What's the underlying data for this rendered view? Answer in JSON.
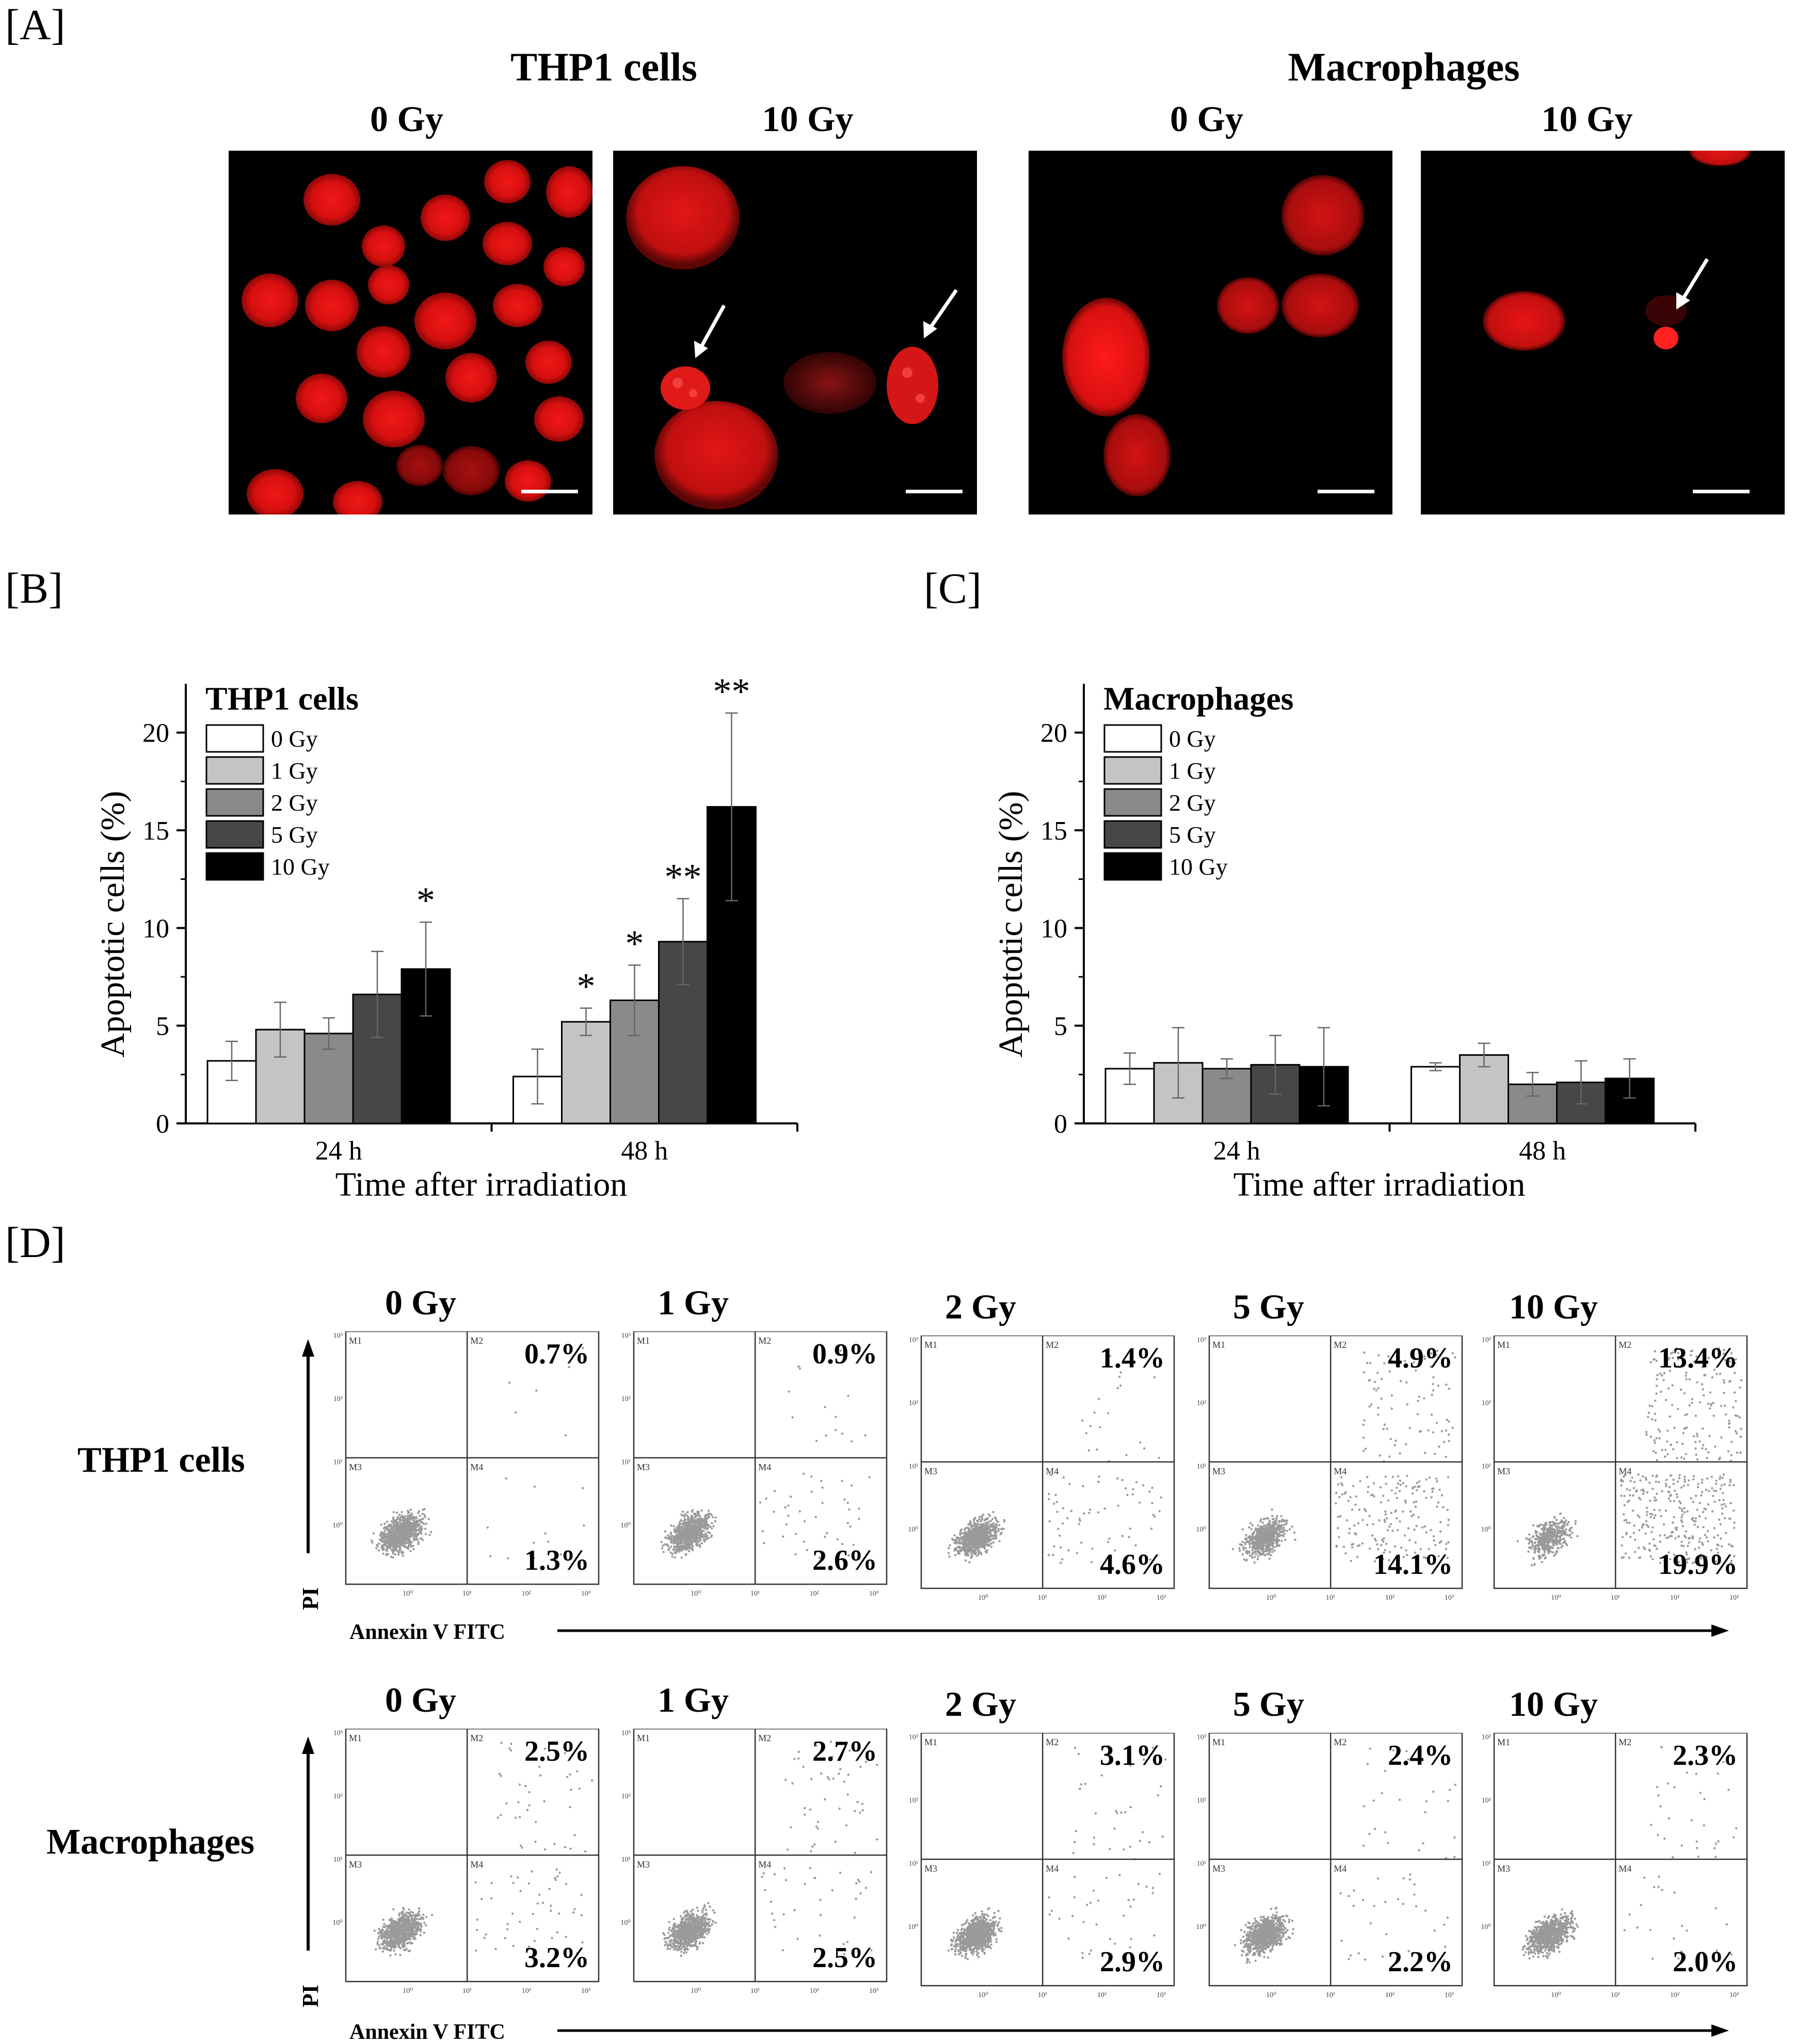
{
  "panel_a": {
    "label": "[A]",
    "groups": [
      {
        "title": "THP1 cells",
        "doses": [
          "0 Gy",
          "10 Gy"
        ]
      },
      {
        "title": "Macrophages",
        "doses": [
          "0 Gy",
          "10 Gy"
        ]
      }
    ]
  },
  "panel_b": {
    "label": "[B]"
  },
  "panel_c": {
    "label": "[C]"
  },
  "panel_d": {
    "label": "[D]"
  },
  "chart_data": [
    {
      "type": "bar",
      "panel": "[B]",
      "title": "THP1 cells",
      "xlabel": "Time after irradiation",
      "ylabel": "Apoptotic cells (%)",
      "categories": [
        "24 h",
        "48 h"
      ],
      "ylim": [
        0,
        22.5
      ],
      "yticks": [
        0,
        5,
        10,
        15,
        20
      ],
      "legend_position": "top-left",
      "series": [
        {
          "name": "0 Gy",
          "color": "#ffffff",
          "values": [
            3.2,
            2.4
          ],
          "errors": [
            1.0,
            1.4
          ]
        },
        {
          "name": "1 Gy",
          "color": "#c4c4c4",
          "values": [
            4.8,
            5.2
          ],
          "errors": [
            1.4,
            0.7
          ]
        },
        {
          "name": "2 Gy",
          "color": "#8a8a8a",
          "values": [
            4.6,
            6.3
          ],
          "errors": [
            0.8,
            1.8
          ]
        },
        {
          "name": "5 Gy",
          "color": "#474747",
          "values": [
            6.6,
            9.3
          ],
          "errors": [
            2.2,
            2.2
          ]
        },
        {
          "name": "10 Gy",
          "color": "#000000",
          "values": [
            7.9,
            16.2
          ],
          "errors": [
            2.4,
            4.8
          ]
        }
      ],
      "annotations": [
        {
          "category": "24 h",
          "series": "10 Gy",
          "text": "*"
        },
        {
          "category": "48 h",
          "series": "1 Gy",
          "text": "*"
        },
        {
          "category": "48 h",
          "series": "2 Gy",
          "text": "*"
        },
        {
          "category": "48 h",
          "series": "5 Gy",
          "text": "**"
        },
        {
          "category": "48 h",
          "series": "10 Gy",
          "text": "**"
        }
      ]
    },
    {
      "type": "bar",
      "panel": "[C]",
      "title": "Macrophages",
      "xlabel": "Time after irradiation",
      "ylabel": "Apoptotic cells (%)",
      "categories": [
        "24 h",
        "48 h"
      ],
      "ylim": [
        0,
        22.5
      ],
      "yticks": [
        0,
        5,
        10,
        15,
        20
      ],
      "legend_position": "top-left",
      "series": [
        {
          "name": "0 Gy",
          "color": "#ffffff",
          "values": [
            2.8,
            2.9
          ],
          "errors": [
            0.8,
            0.2
          ]
        },
        {
          "name": "1 Gy",
          "color": "#c4c4c4",
          "values": [
            3.1,
            3.5
          ],
          "errors": [
            1.8,
            0.6
          ]
        },
        {
          "name": "2 Gy",
          "color": "#8a8a8a",
          "values": [
            2.8,
            2.0
          ],
          "errors": [
            0.5,
            0.6
          ]
        },
        {
          "name": "5 Gy",
          "color": "#474747",
          "values": [
            3.0,
            2.1
          ],
          "errors": [
            1.5,
            1.1
          ]
        },
        {
          "name": "10 Gy",
          "color": "#000000",
          "values": [
            2.9,
            2.3
          ],
          "errors": [
            2.0,
            1.0
          ]
        }
      ],
      "annotations": []
    }
  ],
  "flow": {
    "x_axis_label": "Annexin V FITC",
    "y_axis_label": "PI",
    "gate_labels": [
      "M1",
      "M2",
      "M3",
      "M4"
    ],
    "log_ticks": [
      "10⁰",
      "10¹",
      "10²",
      "10³"
    ],
    "rows": [
      {
        "name": "THP1 cells",
        "plots": [
          {
            "dose": "0 Gy",
            "upper_right": "0.7%",
            "lower_right": "1.3%"
          },
          {
            "dose": "1 Gy",
            "upper_right": "0.9%",
            "lower_right": "2.6%"
          },
          {
            "dose": "2 Gy",
            "upper_right": "1.4%",
            "lower_right": "4.6%"
          },
          {
            "dose": "5 Gy",
            "upper_right": "4.9%",
            "lower_right": "14.1%"
          },
          {
            "dose": "10 Gy",
            "upper_right": "13.4%",
            "lower_right": "19.9%"
          }
        ]
      },
      {
        "name": "Macrophages",
        "plots": [
          {
            "dose": "0 Gy",
            "upper_right": "2.5%",
            "lower_right": "3.2%"
          },
          {
            "dose": "1 Gy",
            "upper_right": "2.7%",
            "lower_right": "2.5%"
          },
          {
            "dose": "2 Gy",
            "upper_right": "3.1%",
            "lower_right": "2.9%"
          },
          {
            "dose": "5 Gy",
            "upper_right": "2.4%",
            "lower_right": "2.2%"
          },
          {
            "dose": "10 Gy",
            "upper_right": "2.3%",
            "lower_right": "2.0%"
          }
        ]
      }
    ]
  }
}
